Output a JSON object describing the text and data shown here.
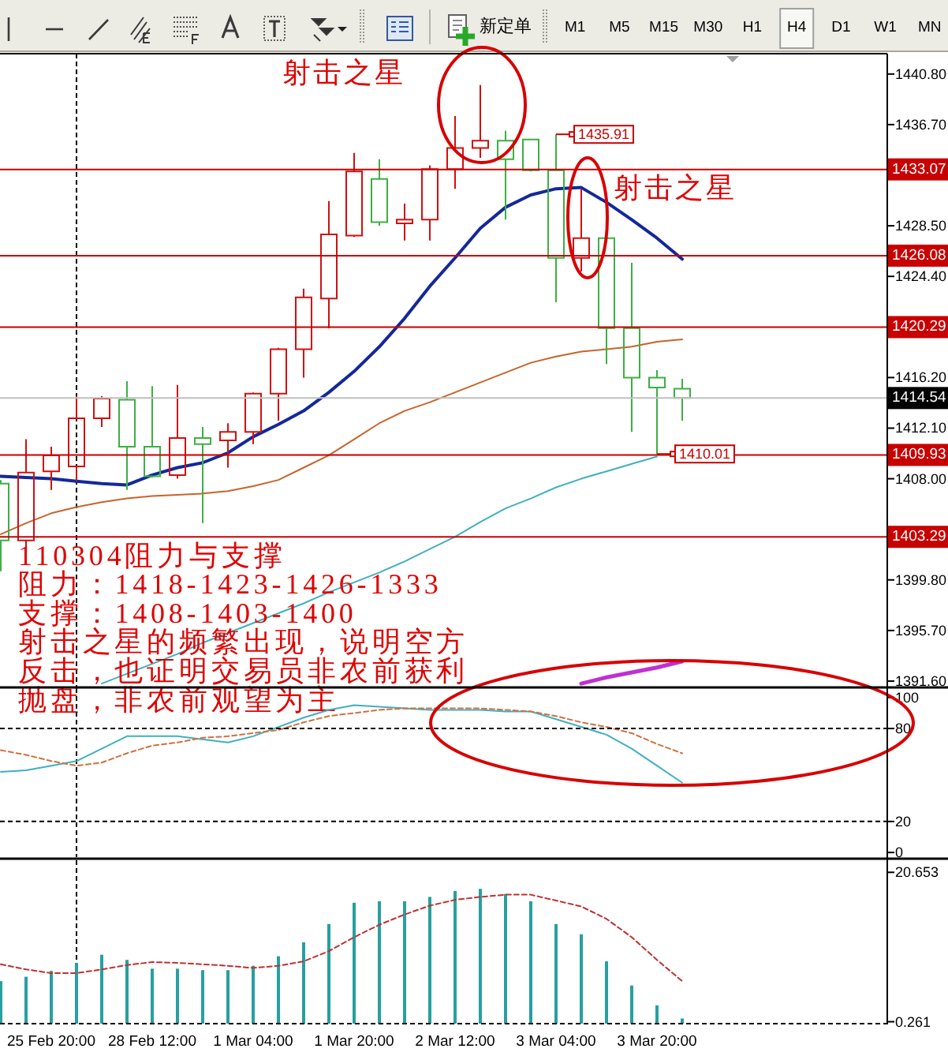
{
  "chart_data": [
    {
      "type": "other",
      "annotations": [
        "新定单",
        "M1",
        "M5",
        "M15",
        "M30",
        "H1",
        "H4",
        "D1",
        "W1",
        "MN"
      ]
    },
    {
      "type": "candlestick",
      "categories": [
        null,
        null,
        null,
        null,
        null,
        null,
        null,
        null,
        null,
        null,
        null,
        null,
        null,
        null,
        null,
        null,
        null,
        null,
        null,
        null,
        null,
        null,
        null,
        null,
        null,
        null,
        null,
        null
      ],
      "ohlc": [
        [
          1407.6,
          1407.9,
          1400.5,
          1403.0
        ],
        [
          1403.0,
          1411.2,
          1401.8,
          1408.5
        ],
        [
          1408.6,
          1410.6,
          1407.1,
          1409.9
        ],
        [
          1409.0,
          1414.7,
          1407.8,
          1412.9
        ],
        [
          1412.9,
          1414.7,
          1412.2,
          1414.5
        ],
        [
          1414.4,
          1415.9,
          1407.1,
          1410.6
        ],
        [
          1410.6,
          1415.5,
          1408.1,
          1408.2
        ],
        [
          1408.3,
          1415.6,
          1408.0,
          1411.3
        ],
        [
          1411.3,
          1412.2,
          1404.4,
          1410.8
        ],
        [
          1411.1,
          1412.5,
          1408.9,
          1411.8
        ],
        [
          1411.8,
          1415.0,
          1410.8,
          1414.9
        ],
        [
          1414.9,
          1418.6,
          1412.7,
          1418.5
        ],
        [
          1418.5,
          1423.4,
          1416.2,
          1422.7
        ],
        [
          1422.6,
          1430.5,
          1420.2,
          1427.8
        ],
        [
          1427.7,
          1434.4,
          1427.6,
          1432.9
        ],
        [
          1432.3,
          1433.9,
          1428.5,
          1428.8
        ],
        [
          1428.7,
          1430.3,
          1427.3,
          1429.0
        ],
        [
          1429.0,
          1433.4,
          1427.3,
          1433.1
        ],
        [
          1433.1,
          1437.4,
          1431.5,
          1434.8
        ],
        [
          1434.8,
          1439.9,
          1434.0,
          1435.4
        ],
        [
          1435.4,
          1436.2,
          1429.0,
          1433.9
        ],
        [
          1435.5,
          1435.5,
          1432.9,
          1433.0
        ],
        [
          1433.0,
          1435.91,
          1422.3,
          1425.9
        ],
        [
          1425.9,
          1431.5,
          1424.8,
          1427.5
        ],
        [
          1427.5,
          1427.6,
          1417.3,
          1420.2
        ],
        [
          1420.2,
          1425.5,
          1411.8,
          1416.2
        ],
        [
          1416.2,
          1416.8,
          1410.01,
          1415.4
        ],
        [
          1415.3,
          1416.1,
          1412.7,
          1414.54
        ]
      ],
      "colors": [
        "#3cb043",
        "#d01010",
        "#d01010",
        "#d01010",
        "#d01010",
        "#3cb043",
        "#3cb043",
        "#d01010",
        "#3cb043",
        "#d01010",
        "#d01010",
        "#d01010",
        "#d01010",
        "#d01010",
        "#d01010",
        "#3cb043",
        "#d01010",
        "#d01010",
        "#d01010",
        "#d01010",
        "#3cb043",
        "#3cb043",
        "#3cb043",
        "#d01010",
        "#3cb043",
        "#3cb043",
        "#3cb043",
        "#3cb043"
      ],
      "series": [
        {
          "type": "line",
          "color": "#13289a",
          "values": [
            1408.2,
            1408.1,
            1408.0,
            1407.8,
            1407.6,
            1407.5,
            1408.3,
            1408.9,
            1409.3,
            1410.1,
            1411.4,
            1412.4,
            1413.5,
            1415.0,
            1416.7,
            1418.7,
            1421.0,
            1423.6,
            1425.9,
            1428.3,
            1430.0,
            1431.0,
            1431.5,
            1431.6,
            1430.4,
            1429.0,
            1427.5,
            1425.8
          ]
        },
        {
          "type": "line",
          "color": "#c8642a",
          "values": [
            1403.5,
            1404.4,
            1405.2,
            1405.7,
            1406.1,
            1406.4,
            1406.6,
            1406.7,
            1406.8,
            1407.0,
            1407.4,
            1407.9,
            1408.9,
            1409.9,
            1411.2,
            1412.5,
            1413.5,
            1414.2,
            1415.0,
            1415.8,
            1416.6,
            1417.4,
            1417.9,
            1418.3,
            1418.5,
            1418.7,
            1419.1,
            1419.3
          ]
        },
        {
          "type": "line",
          "color": "#40b0c0",
          "values": [
            null,
            null,
            null,
            null,
            1391.4,
            1392.2,
            1393.0,
            1393.8,
            1394.7,
            1395.5,
            1396.3,
            1397.1,
            1397.9,
            1398.8,
            1399.6,
            1400.4,
            1401.3,
            1402.3,
            1403.3,
            1404.5,
            1405.6,
            1406.4,
            1407.3,
            1408.0,
            1408.6,
            1409.2,
            1409.8,
            null
          ]
        },
        {
          "type": "line",
          "color": "#c030d0",
          "values": [
            null,
            null,
            null,
            null,
            null,
            null,
            null,
            null,
            null,
            null,
            null,
            null,
            null,
            null,
            null,
            null,
            null,
            null,
            null,
            null,
            null,
            null,
            null,
            1391.4,
            1391.9,
            1392.3,
            1392.7,
            1393.2
          ]
        }
      ],
      "ylim": [
        1391.15,
        1442.45
      ],
      "yticks": [
        {
          "value": 1440.8,
          "label": "1440.80"
        },
        {
          "value": 1436.7,
          "label": "1436.70"
        },
        {
          "value": 1428.5,
          "label": "1428.50"
        },
        {
          "value": 1424.4,
          "label": "1424.40"
        },
        {
          "value": 1416.2,
          "label": "1416.20"
        },
        {
          "value": 1412.1,
          "label": "1412.10"
        },
        {
          "value": 1408,
          "label": "1408.00"
        },
        {
          "value": 1399.8,
          "label": "1399.80"
        },
        {
          "value": 1395.7,
          "label": "1395.70"
        },
        {
          "value": 1391.6,
          "label": "1391.60"
        }
      ],
      "ref_lines": [
        {
          "axis": "y",
          "value": 1433.07,
          "label": "1433.07",
          "color": "#c80000"
        },
        {
          "axis": "y",
          "value": 1426.08,
          "label": "1426.08",
          "color": "#c80000"
        },
        {
          "axis": "y",
          "value": 1420.29,
          "label": "1420.29",
          "color": "#c80000"
        },
        {
          "axis": "y",
          "value": 1414.54,
          "label": "1414.54",
          "color": "#c0c0c0"
        },
        {
          "axis": "y",
          "value": 1409.93,
          "label": "1409.93",
          "color": "#c80000"
        },
        {
          "axis": "y",
          "value": 1403.29,
          "label": "1403.29",
          "color": "#c80000"
        }
      ],
      "annotations": [
        "射击之星",
        "1435.91",
        "射击之星",
        "1410.01",
        "110304阻力与支撑",
        "阻力：1418-1423-1426-1333",
        "支撑：1408-1403-1400",
        "射击之星的频繁出现，说明空方",
        "反击，也证明交易员非农前获利",
        "抛盘，非农前观望为主"
      ],
      "tick_labels": "y"
    },
    {
      "type": "line",
      "categories": [
        null,
        null,
        null,
        null,
        null,
        null,
        null,
        null,
        null,
        null,
        null,
        null,
        null,
        null,
        null,
        null,
        null,
        null,
        null,
        null,
        null,
        null,
        null,
        null,
        null,
        null,
        null,
        null
      ],
      "series": [
        {
          "color": "#40b0c0",
          "values": [
            52,
            53,
            56,
            59,
            67,
            75,
            75,
            75,
            73,
            71,
            75,
            81,
            87,
            92,
            95,
            94,
            93,
            92,
            92,
            92,
            91,
            91,
            86,
            81,
            76,
            67,
            56,
            45
          ]
        },
        {
          "color": "#d07040",
          "line_style": "dashed",
          "values": [
            66,
            63,
            59,
            56,
            58,
            64,
            69,
            71,
            74,
            75,
            77,
            79,
            84,
            88,
            90,
            92,
            93,
            93,
            93,
            93,
            92,
            91,
            88,
            84,
            81,
            77,
            70,
            64
          ]
        }
      ],
      "ylim": [
        -3,
        106
      ],
      "yticks": [
        0,
        20,
        80,
        100
      ],
      "ref_lines": [
        {
          "axis": "y",
          "value": 80,
          "color": "#000000",
          "line_style": "dashed"
        },
        {
          "axis": "y",
          "value": 20,
          "color": "#000000",
          "line_style": "dashed"
        }
      ],
      "tick_labels": "y"
    },
    {
      "type": "bar",
      "categories": [
        null,
        null,
        "25 Feb 20:00",
        null,
        null,
        null,
        "28 Feb 12:00",
        null,
        null,
        null,
        "1 Mar 04:00",
        null,
        null,
        null,
        "1 Mar 20:00",
        null,
        null,
        null,
        "2 Mar 12:00",
        null,
        null,
        null,
        "3 Mar 04:00",
        null,
        null,
        null,
        "3 Mar 20:00",
        null
      ],
      "series": [
        {
          "color": "#26a0a0",
          "values": [
            5.8,
            6.4,
            7.2,
            8.3,
            9.4,
            8.7,
            7.5,
            7.5,
            7.3,
            7.3,
            7.9,
            9.2,
            11.1,
            13.6,
            16.5,
            16.7,
            16.7,
            17.3,
            18.1,
            18.4,
            17.7,
            16.7,
            13.6,
            12.2,
            8.5,
            5.2,
            2.5,
            0.7
          ]
        },
        {
          "type": "line",
          "color": "#c03030",
          "line_style": "dashed",
          "values": [
            8.1,
            7.4,
            6.9,
            6.9,
            7.4,
            8.0,
            8.4,
            8.3,
            8.1,
            7.9,
            7.6,
            7.9,
            8.5,
            9.9,
            11.8,
            13.5,
            14.9,
            16.1,
            16.9,
            17.3,
            17.6,
            17.6,
            16.8,
            16.0,
            14.3,
            11.8,
            8.7,
            5.8
          ]
        }
      ],
      "ylim": [
        -0.11,
        22.3
      ],
      "yticks": [
        0.261,
        20.653
      ]
    }
  ]
}
